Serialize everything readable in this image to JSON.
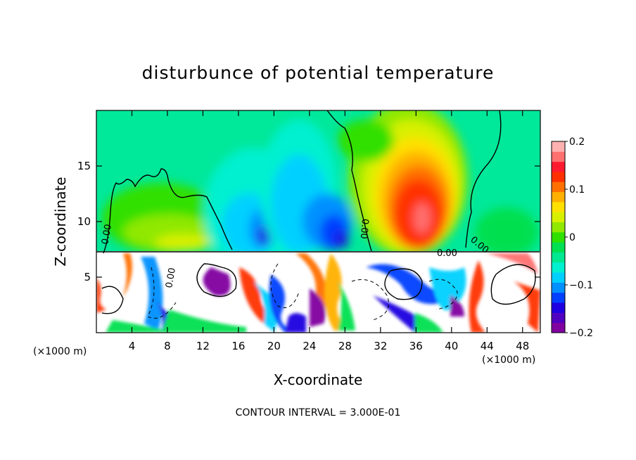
{
  "chart_data": {
    "type": "heatmap",
    "title": "disturbunce of potential temperature",
    "xlabel": "X-coordinate",
    "ylabel": "Z-coordinate",
    "x_unit_left": "(×1000 m)",
    "x_unit_right": "(×1000 m)",
    "xlim": [
      0,
      50
    ],
    "ylim": [
      0,
      20
    ],
    "x_ticks": [
      4,
      8,
      12,
      16,
      20,
      24,
      28,
      32,
      36,
      40,
      44,
      48
    ],
    "y_ticks": [
      5,
      10,
      15
    ],
    "colorbar": {
      "range": [
        -0.2,
        0.2
      ],
      "tick_values": [
        0.2,
        0.1,
        0,
        -0.1,
        -0.2
      ],
      "tick_labels": [
        "0.2",
        "0.1",
        "0",
        "−0.1",
        "−0.2"
      ],
      "colors": [
        "#8000a0",
        "#5000c0",
        "#1e00e0",
        "#0040ff",
        "#0090ff",
        "#00d0ff",
        "#00f0d0",
        "#00e890",
        "#00e050",
        "#30e000",
        "#90e800",
        "#d8f000",
        "#ffe000",
        "#ffb000",
        "#ff7000",
        "#ff3000",
        "#ff1a30",
        "#ff7070",
        "#ffb0b0"
      ]
    },
    "contour_labels": [
      "0.00",
      "0.00",
      "0.00",
      "0.00",
      "0.00"
    ],
    "contour_interval_text": "CONTOUR INTERVAL = 3.000E-01"
  }
}
